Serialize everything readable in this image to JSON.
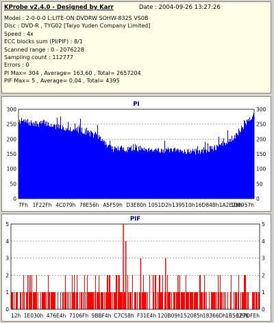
{
  "info": {
    "title": "KProbe v2.4.0 - Designed by Karr",
    "date": "Date : 2004-09-26 13:27:26",
    "lines": [
      "Model : 2-0-0-0 L:LITE-ON DVDRW SOHW-832S  VS0B",
      "Disc : DVD-R , TYG02 [Taiyo Yuden Company Limited]",
      "Speed : 4x",
      "ECC blocks sum (PI/PIF) : 8/1",
      "Scanned range : 0 - 2076228",
      "Sampling count : 112777",
      "Errors : 0",
      "PI Max= 304 , Average= 163,60 , Total= 2657204",
      "PIF Max= 5 , Average= 0,04 , Total= 4395"
    ]
  },
  "colors": {
    "pi": "#0000ff",
    "pif": "#ff0000",
    "grid": "#808080",
    "title": "#000080"
  },
  "chart_data": [
    {
      "type": "area",
      "title": "PI",
      "ylim": [
        0,
        300
      ],
      "yticks": [
        0,
        50,
        100,
        150,
        200,
        250,
        300
      ],
      "grid": true,
      "xtick_labels": [
        "7Fh",
        "1F22Fh",
        "4C079h",
        "78E56h",
        "A5F59h",
        "D3E80h",
        "1051D2h",
        "139510h",
        "16D848h",
        "1A2E26h",
        "1D8957h"
      ],
      "profile": [
        [
          0.0,
          262
        ],
        [
          0.03,
          258
        ],
        [
          0.07,
          250
        ],
        [
          0.11,
          255
        ],
        [
          0.15,
          243
        ],
        [
          0.19,
          238
        ],
        [
          0.23,
          234
        ],
        [
          0.27,
          228
        ],
        [
          0.31,
          218
        ],
        [
          0.34,
          205
        ],
        [
          0.37,
          185
        ],
        [
          0.385,
          172
        ],
        [
          0.4,
          168
        ],
        [
          0.45,
          167
        ],
        [
          0.5,
          168
        ],
        [
          0.55,
          167
        ],
        [
          0.6,
          163
        ],
        [
          0.65,
          160
        ],
        [
          0.7,
          160
        ],
        [
          0.75,
          158
        ],
        [
          0.8,
          163
        ],
        [
          0.84,
          173
        ],
        [
          0.88,
          190
        ],
        [
          0.92,
          212
        ],
        [
          0.95,
          240
        ],
        [
          0.975,
          265
        ],
        [
          1.0,
          282
        ]
      ],
      "max": 304
    },
    {
      "type": "bar",
      "title": "PIF",
      "ylim": [
        0,
        5
      ],
      "yticks": [
        0,
        1,
        2,
        3,
        4,
        5
      ],
      "grid": true,
      "xtick_labels": [
        "12h",
        "1E030h",
        "476E4h",
        "7106Fh",
        "9BBF4h",
        "C7C58h",
        "F31E4h",
        "120B09h",
        "152085h",
        "18366Dh",
        "1B5629h",
        "1E7DFEh"
      ],
      "baseline": 1,
      "spikes": [
        [
          0.45,
          5
        ],
        [
          0.46,
          4
        ],
        [
          0.52,
          3
        ],
        [
          0.62,
          3
        ],
        [
          0.43,
          2
        ],
        [
          0.57,
          2
        ],
        [
          0.67,
          2
        ]
      ],
      "max": 5
    }
  ]
}
